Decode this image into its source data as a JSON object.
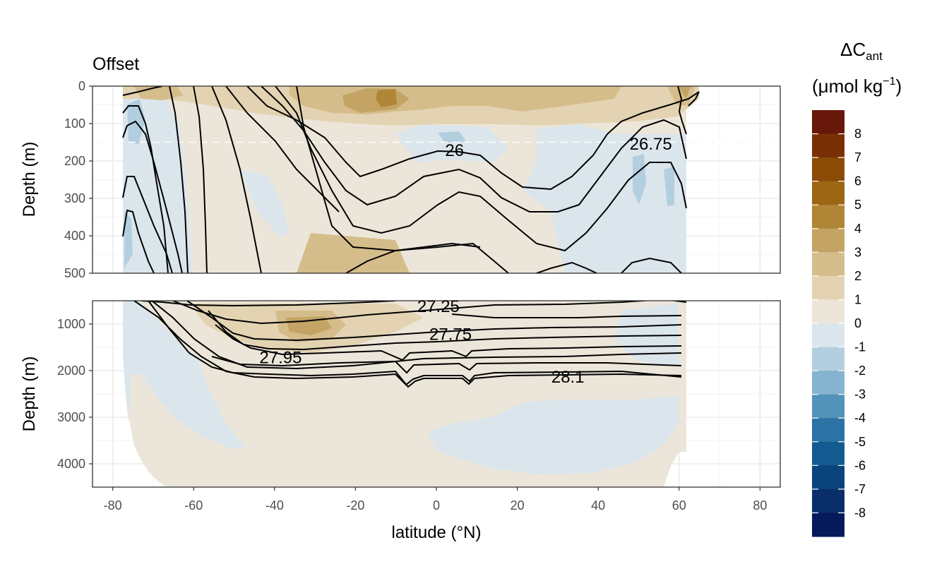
{
  "chart_data": {
    "type": "heatmap",
    "title": "Offset",
    "xlabel": "latitude (°N)",
    "xlim": [
      -85,
      85
    ],
    "x_ticks": [
      -80,
      -60,
      -40,
      -20,
      0,
      20,
      40,
      60,
      80
    ],
    "panels": [
      {
        "name": "upper",
        "ylabel": "Depth (m)",
        "ylim": [
          0,
          500
        ],
        "y_ticks": [
          0,
          100,
          200,
          300,
          400,
          500
        ],
        "reference_depth": 150,
        "contour_labels": [
          {
            "text": "26",
            "lat": 4.5,
            "depth": 172
          },
          {
            "text": "26.75",
            "lat": 53,
            "depth": 155
          }
        ]
      },
      {
        "name": "lower",
        "ylabel": "Depth (m)",
        "ylim": [
          500,
          4500
        ],
        "y_ticks": [
          1000,
          2000,
          3000,
          4000
        ],
        "contour_labels": [
          {
            "text": "27.25",
            "lat": 0.5,
            "depth": 620
          },
          {
            "text": "27.75",
            "lat": 3.5,
            "depth": 1220
          },
          {
            "text": "27.95",
            "lat": -38.5,
            "depth": 1720
          },
          {
            "text": "28.1",
            "lat": 32.5,
            "depth": 2140
          }
        ]
      }
    ],
    "legend": {
      "title_main": "ΔC",
      "title_sub": "ant",
      "title_unit_pre": "(μmol kg",
      "title_unit_sup": "−1",
      "title_unit_post": ")",
      "labels": [
        "8",
        "7",
        "6",
        "5",
        "4",
        "3",
        "2",
        "1",
        "0",
        "-1",
        "-2",
        "-3",
        "-4",
        "-5",
        "-6",
        "-7",
        "-8"
      ],
      "colors": [
        "#67180a",
        "#7a3005",
        "#8a4b06",
        "#9c6614",
        "#b08535",
        "#c4a465",
        "#d5bd8b",
        "#e3d3b2",
        "#ece6da",
        "#dbe6ec",
        "#b3cfdf",
        "#86b3cf",
        "#5493b9",
        "#2b73a4",
        "#135a91",
        "#0b437b",
        "#082f6a",
        "#06195a"
      ]
    }
  }
}
